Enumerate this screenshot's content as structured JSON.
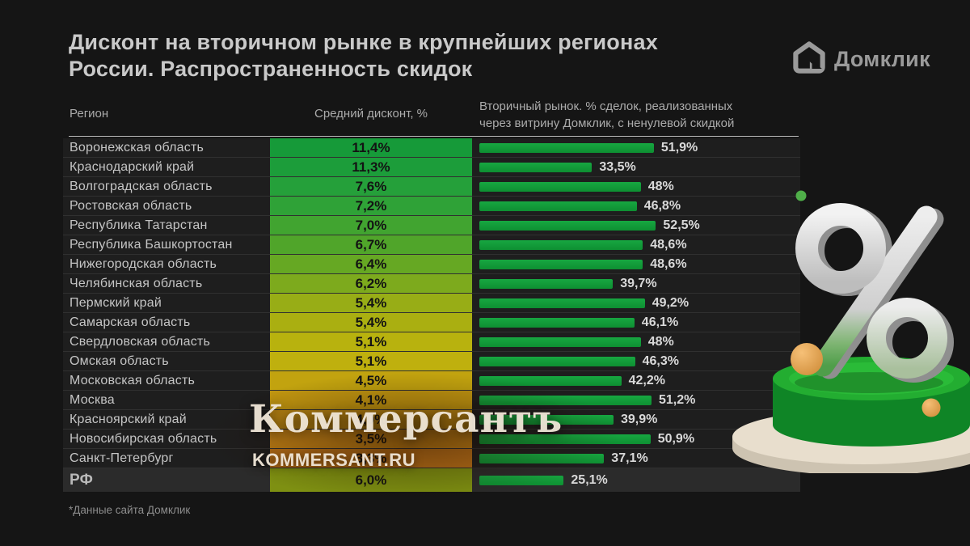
{
  "header": {
    "title_line1": "Дисконт на вторичном рынке в крупнейших регионах",
    "title_line2": "России. Распространенность скидок",
    "brand": "Домклик"
  },
  "columns": {
    "region": "Регион",
    "avg_discount": "Средний дисконт, %",
    "share_line1": "Вторичный рынок. % сделок, реализованных",
    "share_line2": "через витрину Домклик, с ненулевой скидкой"
  },
  "watermark": {
    "big": "Коммерсантъ",
    "small": "KOMMERSANT.RU"
  },
  "footnote": "*Данные сайта Домклик",
  "colors": {
    "background": "#151515",
    "bar_green": "#14a03c",
    "row_bg": "#1e1e1e",
    "total_row_bg": "#2b2b2b",
    "accent_green_dot": "#4fae49"
  },
  "icons": {
    "brand_logo": "domklik-house-icon",
    "decoration": "3d-percent-sign-on-green-podium"
  },
  "chart_data": {
    "type": "bar",
    "title": "Дисконт на вторичном рынке в крупнейших регионах России. Распространенность скидок",
    "note": "*Данные сайта Домклик",
    "legend_position": "none",
    "grid": false,
    "xlim_share_percent": [
      0,
      60
    ],
    "series": [
      {
        "name": "Средний дисконт, %",
        "render": "colored-cell"
      },
      {
        "name": "Вторичный рынок. % сделок, реализованных через витрину Домклик, с ненулевой скидкой",
        "render": "horizontal-bar"
      }
    ],
    "rows": [
      {
        "region": "Воронежская область",
        "avg_discount": "11,4%",
        "avg_discount_value": 11.4,
        "share": "51,9%",
        "share_value": 51.9,
        "color": "#169a39",
        "is_total": false
      },
      {
        "region": "Краснодарский край",
        "avg_discount": "11,3%",
        "avg_discount_value": 11.3,
        "share": "33,5%",
        "share_value": 33.5,
        "color": "#1c9d3a",
        "is_total": false
      },
      {
        "region": "Волгоградская область",
        "avg_discount": "7,6%",
        "avg_discount_value": 7.6,
        "share": "48%",
        "share_value": 48.0,
        "color": "#25a03a",
        "is_total": false
      },
      {
        "region": "Ростовская область",
        "avg_discount": "7,2%",
        "avg_discount_value": 7.2,
        "share": "46,8%",
        "share_value": 46.8,
        "color": "#2fa237",
        "is_total": false
      },
      {
        "region": "Республика Татарстан",
        "avg_discount": "7,0%",
        "avg_discount_value": 7.0,
        "share": "52,5%",
        "share_value": 52.5,
        "color": "#41a430",
        "is_total": false
      },
      {
        "region": "Республика Башкортостан",
        "avg_discount": "6,7%",
        "avg_discount_value": 6.7,
        "share": "48,6%",
        "share_value": 48.6,
        "color": "#50a52a",
        "is_total": false
      },
      {
        "region": "Нижегородская область",
        "avg_discount": "6,4%",
        "avg_discount_value": 6.4,
        "share": "48,6%",
        "share_value": 48.6,
        "color": "#66a823",
        "is_total": false
      },
      {
        "region": "Челябинская область",
        "avg_discount": "6,2%",
        "avg_discount_value": 6.2,
        "share": "39,7%",
        "share_value": 39.7,
        "color": "#7daa1d",
        "is_total": false
      },
      {
        "region": "Пермский край",
        "avg_discount": "5,4%",
        "avg_discount_value": 5.4,
        "share": "49,2%",
        "share_value": 49.2,
        "color": "#98ad16",
        "is_total": false
      },
      {
        "region": "Самарская область",
        "avg_discount": "5,4%",
        "avg_discount_value": 5.4,
        "share": "46,1%",
        "share_value": 46.1,
        "color": "#aaaf11",
        "is_total": false
      },
      {
        "region": "Свердловская область",
        "avg_discount": "5,1%",
        "avg_discount_value": 5.1,
        "share": "48%",
        "share_value": 48.0,
        "color": "#b8b20e",
        "is_total": false
      },
      {
        "region": "Омская область",
        "avg_discount": "5,1%",
        "avg_discount_value": 5.1,
        "share": "46,3%",
        "share_value": 46.3,
        "color": "#bfb00e",
        "is_total": false
      },
      {
        "region": "Московская область",
        "avg_discount": "4,5%",
        "avg_discount_value": 4.5,
        "share": "42,2%",
        "share_value": 42.2,
        "color": "#c2a30f",
        "is_total": false
      },
      {
        "region": "Москва",
        "avg_discount": "4,1%",
        "avg_discount_value": 4.1,
        "share": "51,2%",
        "share_value": 51.2,
        "color": "#c29711",
        "is_total": false
      },
      {
        "region": "Красноярский край",
        "avg_discount": "4,0%",
        "avg_discount_value": 4.0,
        "share": "39,9%",
        "share_value": 39.9,
        "color": "#c18b13",
        "is_total": false
      },
      {
        "region": "Новосибирская область",
        "avg_discount": "3,5%",
        "avg_discount_value": 3.5,
        "share": "50,9%",
        "share_value": 50.9,
        "color": "#bf7f16",
        "is_total": false
      },
      {
        "region": "Санкт-Петербург",
        "avg_discount": "3,3%",
        "avg_discount_value": 3.3,
        "share": "37,1%",
        "share_value": 37.1,
        "color": "#b97018",
        "is_total": false
      },
      {
        "region": "РФ",
        "avg_discount": "6,0%",
        "avg_discount_value": 6.0,
        "share": "25,1%",
        "share_value": 25.1,
        "color": "#7e9012",
        "is_total": true
      }
    ]
  }
}
